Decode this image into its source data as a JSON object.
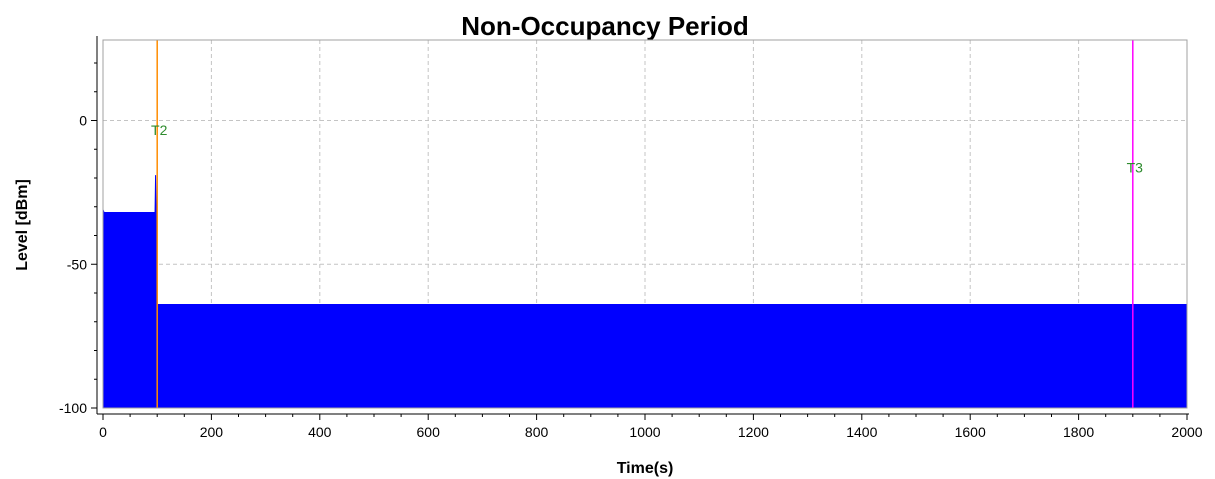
{
  "chart_data": {
    "type": "area",
    "title": "Non-Occupancy Period",
    "xlabel": "Time(s)",
    "ylabel": "Level [dBm]",
    "xlim": [
      0,
      2000
    ],
    "ylim": [
      -100,
      28
    ],
    "x_ticks": [
      0,
      200,
      400,
      600,
      800,
      1000,
      1200,
      1400,
      1600,
      1800,
      2000
    ],
    "y_ticks": [
      -100,
      -50,
      0
    ],
    "grid": true,
    "series": [
      {
        "color": "#0000ff",
        "x": [
          0,
          2,
          96,
          97,
          98,
          99,
          100,
          101,
          2000
        ],
        "y": [
          -31,
          -32,
          -32,
          -19,
          -32,
          -32,
          -64,
          -64,
          -64
        ]
      }
    ],
    "markers": [
      {
        "label": "T2",
        "x": 100,
        "label_y": -5,
        "line_color": "#ff8c00",
        "label_color": "#2e8b2e"
      },
      {
        "label": "T3",
        "x": 1900,
        "label_y": -18,
        "line_color": "#ff00ff",
        "label_color": "#2e8b2e"
      }
    ]
  }
}
